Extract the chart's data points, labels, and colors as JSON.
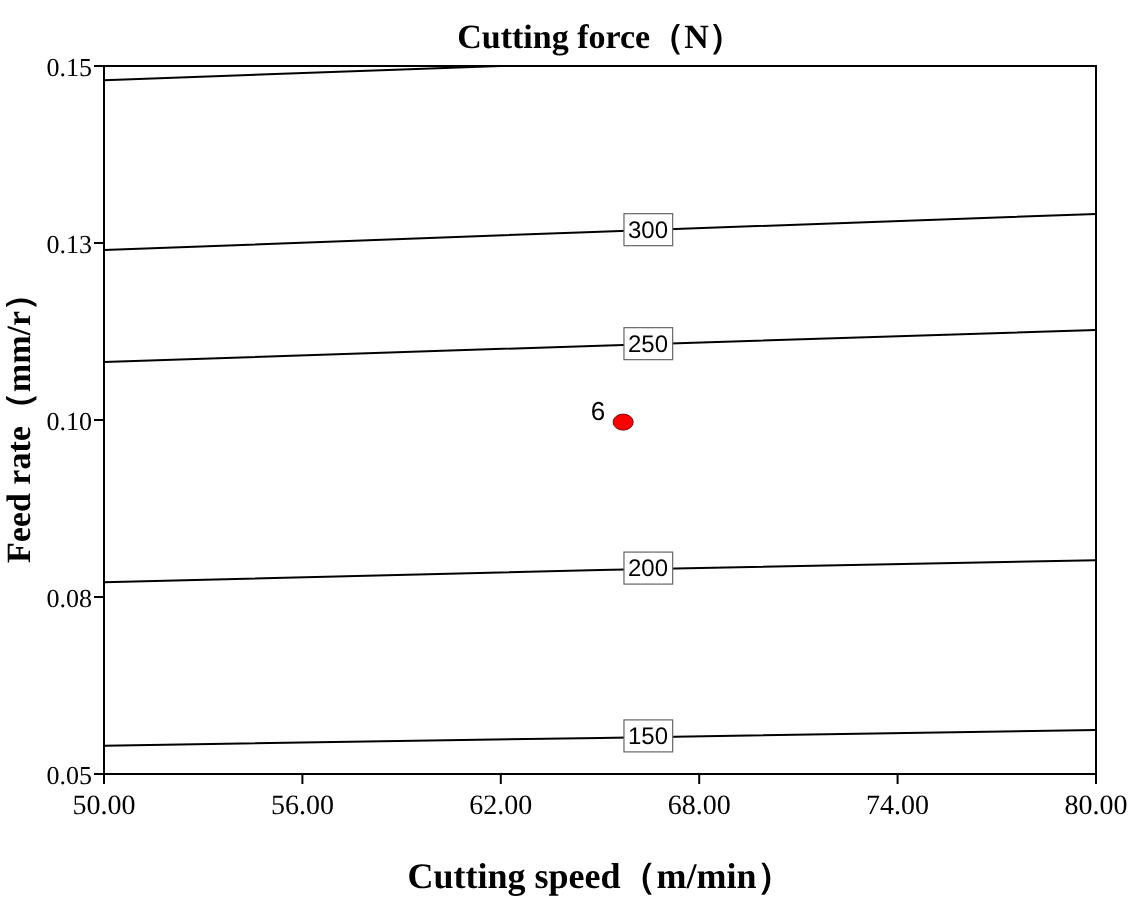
{
  "chart_data": {
    "type": "line",
    "title": "Cutting force（N）",
    "xlabel": "Cutting speed（m/min）",
    "ylabel": "Feed rate（mm/r）",
    "xlim": [
      50,
      80
    ],
    "ylim": [
      0.05,
      0.15
    ],
    "xticks": [
      {
        "value": 50,
        "label": "50.00"
      },
      {
        "value": 56,
        "label": "56.00"
      },
      {
        "value": 62,
        "label": "62.00"
      },
      {
        "value": 68,
        "label": "68.00"
      },
      {
        "value": 74,
        "label": "74.00"
      },
      {
        "value": 80,
        "label": "80.00"
      }
    ],
    "yticks": [
      {
        "value": 0.05,
        "label": "0.05"
      },
      {
        "value": 0.075,
        "label": "0.08"
      },
      {
        "value": 0.1,
        "label": "0.10"
      },
      {
        "value": 0.125,
        "label": "0.13"
      },
      {
        "value": 0.15,
        "label": "0.15"
      }
    ],
    "series": [
      {
        "name": "150",
        "color": "#000000",
        "x": [
          50,
          65,
          80
        ],
        "values": [
          0.054,
          0.0551,
          0.0562
        ]
      },
      {
        "name": "200",
        "color": "#000000",
        "x": [
          50,
          65,
          80
        ],
        "values": [
          0.0771,
          0.0788,
          0.0802
        ]
      },
      {
        "name": "250",
        "color": "#000000",
        "x": [
          50,
          65,
          80
        ],
        "values": [
          0.1082,
          0.1105,
          0.1127
        ]
      },
      {
        "name": "300",
        "color": "#000000",
        "x": [
          50,
          65,
          80
        ],
        "values": [
          0.124,
          0.1266,
          0.1291
        ]
      },
      {
        "color": "#000000",
        "x": [
          50,
          62
        ],
        "values": [
          0.148,
          0.15
        ]
      },
      {
        "type": "scatter",
        "color": "#ff0000",
        "x": [
          65.7
        ],
        "values": [
          0.0997
        ]
      }
    ],
    "annotations": [
      {
        "text": "6",
        "x": 65.7,
        "y": 0.0997
      }
    ]
  }
}
